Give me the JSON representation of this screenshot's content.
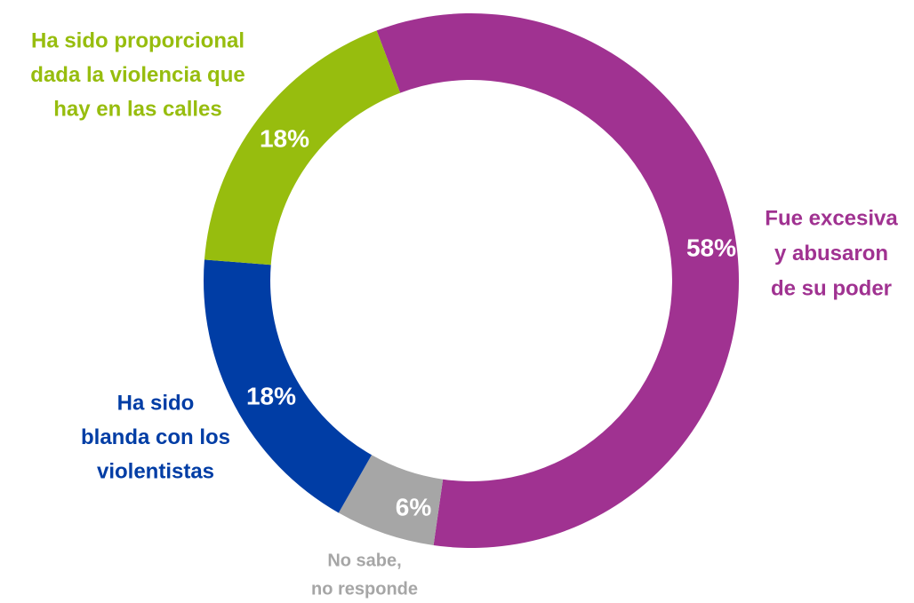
{
  "chart_data": {
    "type": "donut",
    "categories": [
      [
        "Fue excesiva",
        "y abusaron",
        "de su poder"
      ],
      [
        "No sabe,",
        "no responde"
      ],
      [
        "Ha sido",
        "blanda con los",
        "violentistas"
      ],
      [
        "Ha sido proporcional",
        "dada la violencia que",
        "hay en las calles"
      ]
    ],
    "values": [
      58,
      6,
      18,
      18
    ],
    "value_labels": [
      "58%",
      "6%",
      "18%",
      "18%"
    ],
    "colors": [
      "#a03291",
      "#a6a6a6",
      "#003da5",
      "#97bd0e"
    ]
  }
}
